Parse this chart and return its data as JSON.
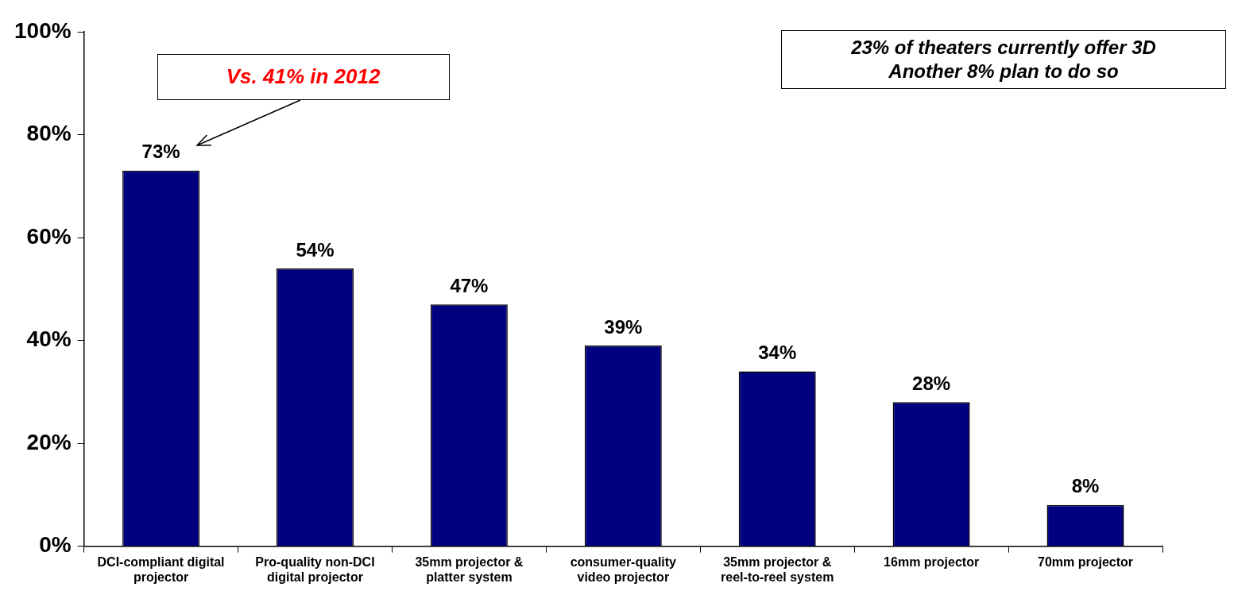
{
  "chart_data": {
    "type": "bar",
    "categories": [
      "DCI-compliant digital projector",
      "Pro-quality non-DCI digital projector",
      "35mm projector & platter system",
      "consumer-quality video projector",
      "35mm projector & reel-to-reel system",
      "16mm projector",
      "70mm projector"
    ],
    "values": [
      73,
      54,
      47,
      39,
      34,
      28,
      8
    ],
    "color": "#000080",
    "value_labels": [
      "73%",
      "54%",
      "47%",
      "39%",
      "34%",
      "28%",
      "8%"
    ],
    "ylim": [
      0,
      100
    ],
    "yticks": [
      {
        "value": 0,
        "label": "0%"
      },
      {
        "value": 20,
        "label": "20%"
      },
      {
        "value": 40,
        "label": "40%"
      },
      {
        "value": 60,
        "label": "60%"
      },
      {
        "value": 80,
        "label": "80%"
      },
      {
        "value": 100,
        "label": "100%"
      }
    ],
    "grid": false,
    "legend": false,
    "annotations": [
      "Vs. 41% in 2012",
      "23% of theaters currently offer 3D",
      "Another 8% plan to do so"
    ]
  }
}
